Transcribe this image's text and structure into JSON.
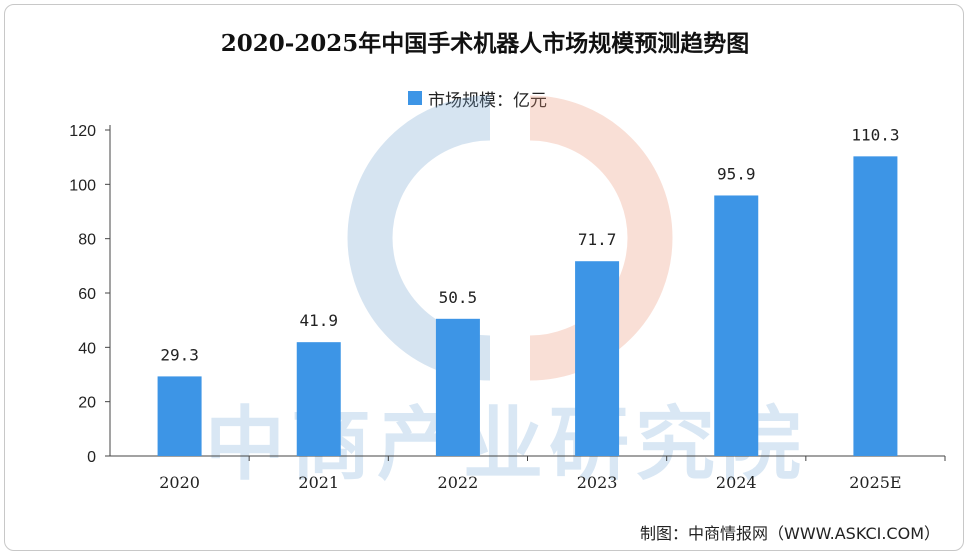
{
  "chart_data": {
    "type": "bar",
    "title": "2020-2025年中国手术机器人市场规模预测趋势图",
    "categories": [
      "2020",
      "2021",
      "2022",
      "2023",
      "2024",
      "2025E"
    ],
    "series": [
      {
        "name": "市场规模：亿元",
        "values": [
          29.3,
          41.9,
          50.5,
          71.7,
          95.9,
          110.3
        ]
      }
    ],
    "value_labels": [
      "29.3",
      "41.9",
      "50.5",
      "71.7",
      "95.9",
      "110.3"
    ],
    "ylim": [
      0,
      120
    ],
    "yticks": [
      0,
      20,
      40,
      60,
      80,
      100,
      120
    ],
    "grid": false,
    "legend_position": "top-center",
    "bar_color": "#3d95e6"
  },
  "footer": {
    "source": "制图：中商情报网（WWW.ASKCI.COM）"
  },
  "watermark": {
    "text": "中商产业研究院"
  }
}
